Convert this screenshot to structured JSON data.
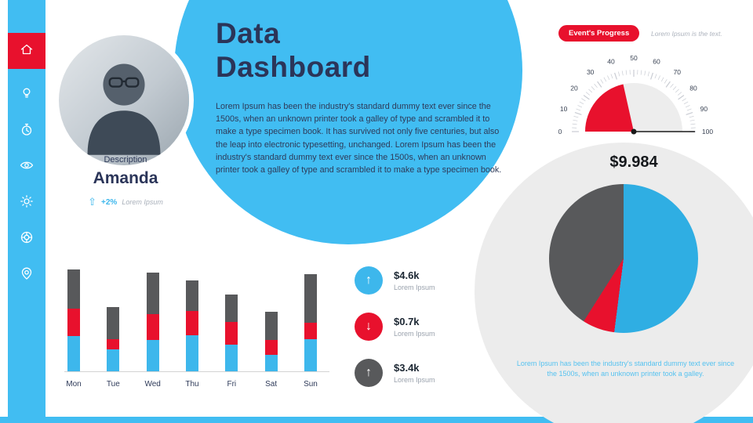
{
  "colors": {
    "blue": "#41BDF2",
    "red": "#E8112D",
    "dark_gray": "#58595B",
    "navy": "#2B3559",
    "light_gray": "#ECECEC"
  },
  "title": {
    "line1": "Data",
    "line2": "Dashboard"
  },
  "paragraph": "Lorem Ipsum has been the industry's standard dummy text ever since the 1500s, when an unknown printer took a galley of type and scrambled it to make a type specimen book. It has survived not only five centuries, but also the leap into electronic typesetting, unchanged. Lorem Ipsum has been the industry's standard dummy text ever since the 1500s, when an unknown printer took a galley of type and scrambled it to make a type specimen book.",
  "sidebar": {
    "icons": [
      "home-icon",
      "idea-icon",
      "time-icon",
      "visibility-icon",
      "settings-icon",
      "support-icon",
      "location-icon"
    ]
  },
  "profile": {
    "label": "Description",
    "name": "Amanda",
    "delta": "+2%",
    "delta_caption": "Lorem Ipsum"
  },
  "progress": {
    "badge": "Event's Progress",
    "caption": "Lorem Ipsum is the text.",
    "value_label": "$9.984"
  },
  "kpis": [
    {
      "value": "$4.6k",
      "caption": "Lorem Ipsum",
      "color": "#3DB7EC",
      "direction": "up"
    },
    {
      "value": "$0.7k",
      "caption": "Lorem Ipsum",
      "color": "#E8112D",
      "direction": "down"
    },
    {
      "value": "$3.4k",
      "caption": "Lorem Ipsum",
      "color": "#58595B",
      "direction": "up"
    }
  ],
  "pie_caption": "Lorem Ipsum has been the industry's standard dummy text ever since the 1500s, when an unknown printer took a galley.",
  "chart_data": [
    {
      "type": "bar",
      "stacked": true,
      "title": "Weekly stacked bars",
      "categories": [
        "Mon",
        "Tue",
        "Wed",
        "Thu",
        "Fri",
        "Sat",
        "Sun"
      ],
      "unit": "relative-px",
      "series": [
        {
          "name": "blue",
          "color": "#3DB7EC",
          "values": [
            45,
            28,
            40,
            46,
            34,
            21,
            41
          ]
        },
        {
          "name": "red",
          "color": "#E8112D",
          "values": [
            35,
            13,
            33,
            31,
            29,
            19,
            21
          ]
        },
        {
          "name": "gray",
          "color": "#58595B",
          "values": [
            50,
            41,
            53,
            39,
            35,
            36,
            62
          ]
        }
      ],
      "xlabel": "",
      "ylabel": "",
      "grid": false,
      "legend": false
    },
    {
      "type": "gauge",
      "title": "Event's Progress",
      "min": 0,
      "max": 100,
      "value": 43,
      "ticks": [
        0,
        10,
        20,
        30,
        40,
        50,
        60,
        70,
        80,
        90,
        100
      ],
      "fill_color": "#E8112D",
      "track_color": "#EDEDED",
      "value_label": "$9.984"
    },
    {
      "type": "pie",
      "title": "Share pie",
      "slices": [
        {
          "label": "blue",
          "value": 52,
          "color": "#2FAEE3"
        },
        {
          "label": "red",
          "value": 7,
          "color": "#E8112D"
        },
        {
          "label": "gray",
          "value": 41,
          "color": "#58595B"
        }
      ],
      "legend": false
    }
  ]
}
